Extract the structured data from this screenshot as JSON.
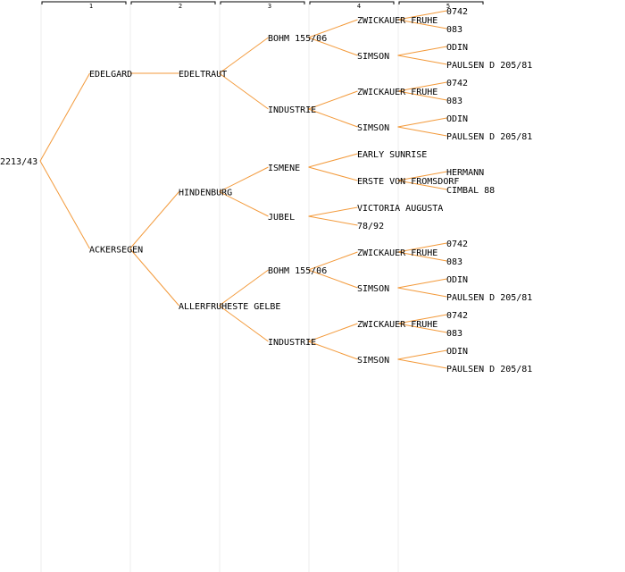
{
  "tree": {
    "generation_labels": [
      "1",
      "2",
      "3",
      "4",
      "5"
    ],
    "colors": {
      "edge": "#f39a3b",
      "divider": "#ececec",
      "header": "#000000",
      "text": "#000000"
    },
    "root": {
      "name": "2213/43",
      "children": [
        {
          "name": "EDELGARD",
          "children": [
            {
              "name": "EDELTRAUT",
              "children": [
                {
                  "name": "BOHM 155/06",
                  "children": [
                    {
                      "name": "ZWICKAUER FRUHE",
                      "children": [
                        {
                          "name": "0742"
                        },
                        {
                          "name": "083"
                        }
                      ]
                    },
                    {
                      "name": "SIMSON",
                      "children": [
                        {
                          "name": "ODIN"
                        },
                        {
                          "name": "PAULSEN D 205/81"
                        }
                      ]
                    }
                  ]
                },
                {
                  "name": "INDUSTRIE",
                  "children": [
                    {
                      "name": "ZWICKAUER FRUHE",
                      "children": [
                        {
                          "name": "0742"
                        },
                        {
                          "name": "083"
                        }
                      ]
                    },
                    {
                      "name": "SIMSON",
                      "children": [
                        {
                          "name": "ODIN"
                        },
                        {
                          "name": "PAULSEN D 205/81"
                        }
                      ]
                    }
                  ]
                }
              ]
            }
          ]
        },
        {
          "name": "ACKERSEGEN",
          "children": [
            {
              "name": "HINDENBURG",
              "children": [
                {
                  "name": "ISMENE",
                  "children": [
                    {
                      "name": "EARLY SUNRISE"
                    },
                    {
                      "name": "ERSTE VON FROMSDORF",
                      "children": [
                        {
                          "name": "HERMANN"
                        },
                        {
                          "name": "CIMBAL 88"
                        }
                      ]
                    }
                  ]
                },
                {
                  "name": "JUBEL",
                  "children": [
                    {
                      "name": "VICTORIA AUGUSTA"
                    },
                    {
                      "name": "78/92"
                    }
                  ]
                }
              ]
            },
            {
              "name": "ALLERFRUHESTE GELBE",
              "children": [
                {
                  "name": "BOHM 155/06",
                  "children": [
                    {
                      "name": "ZWICKAUER FRUHE",
                      "children": [
                        {
                          "name": "0742"
                        },
                        {
                          "name": "083"
                        }
                      ]
                    },
                    {
                      "name": "SIMSON",
                      "children": [
                        {
                          "name": "ODIN"
                        },
                        {
                          "name": "PAULSEN D 205/81"
                        }
                      ]
                    }
                  ]
                },
                {
                  "name": "INDUSTRIE",
                  "children": [
                    {
                      "name": "ZWICKAUER FRUHE",
                      "children": [
                        {
                          "name": "0742"
                        },
                        {
                          "name": "083"
                        }
                      ]
                    },
                    {
                      "name": "SIMSON",
                      "children": [
                        {
                          "name": "ODIN"
                        },
                        {
                          "name": "PAULSEN D 205/81"
                        }
                      ]
                    }
                  ]
                }
              ]
            }
          ]
        }
      ]
    }
  }
}
